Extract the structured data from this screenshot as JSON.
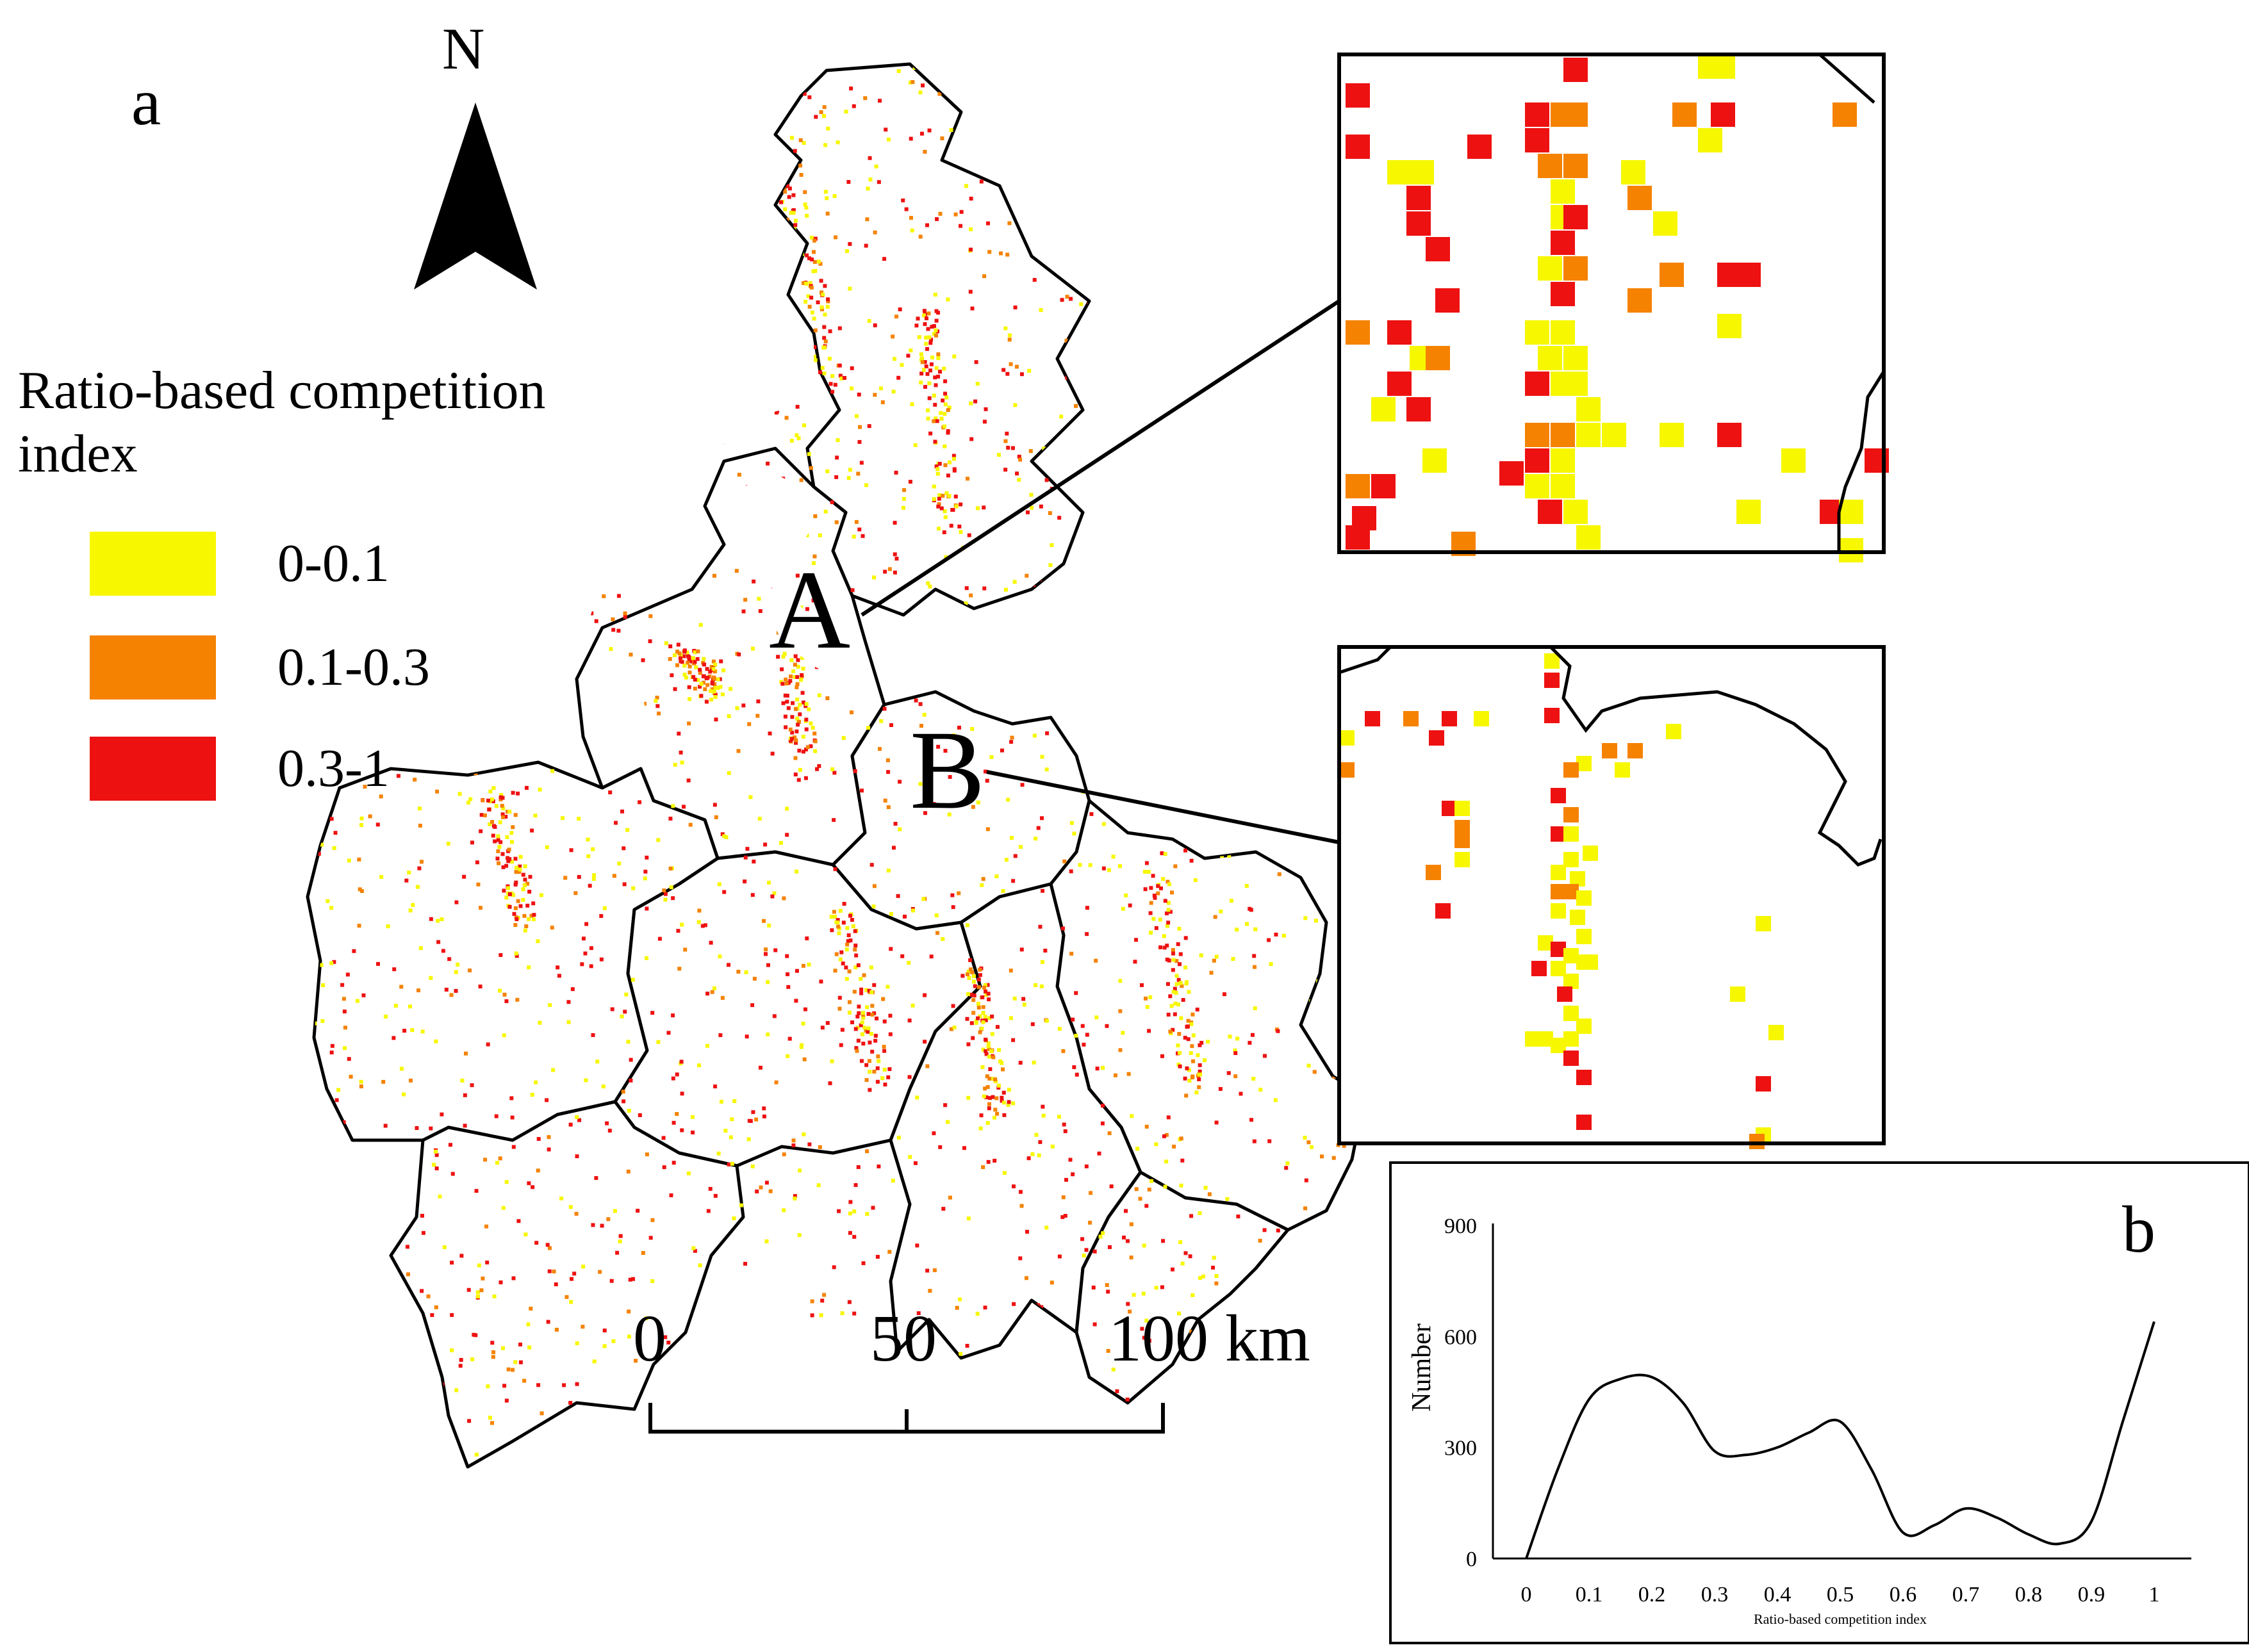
{
  "figure": {
    "panel_a_label": "a",
    "panel_b_label": "b",
    "north_arrow": {
      "letter": "N",
      "icon": "north-arrow-icon"
    }
  },
  "legend": {
    "title": "Ratio-based competition index",
    "items": [
      {
        "label": "0-0.1",
        "color": "#f7f700"
      },
      {
        "label": "0.1-0.3",
        "color": "#f58200"
      },
      {
        "label": "0.3-1",
        "color": "#ee1111"
      }
    ]
  },
  "map": {
    "inset_a_letter": "A",
    "inset_b_letter": "B",
    "boundary_color": "#000000",
    "scale_bar": {
      "labels": [
        "0",
        "50",
        "100 km"
      ]
    }
  },
  "chart_data": {
    "type": "line",
    "title": "",
    "xlabel": "Ratio-based competition index",
    "ylabel": "Number",
    "x_ticks": [
      "0",
      "0.1",
      "0.2",
      "0.3",
      "0.4",
      "0.5",
      "0.6",
      "0.7",
      "0.8",
      "0.9",
      "1"
    ],
    "y_ticks": [
      "0",
      "300",
      "600",
      "900"
    ],
    "xlim": [
      0,
      1
    ],
    "ylim": [
      0,
      900
    ],
    "grid": false,
    "legend": "none",
    "line_color": "#000000",
    "series": [
      {
        "x": [
          0.0,
          0.05,
          0.1,
          0.15,
          0.2,
          0.25,
          0.3,
          0.35,
          0.4,
          0.45,
          0.5,
          0.55,
          0.6,
          0.65,
          0.7,
          0.75,
          0.8,
          0.85,
          0.9,
          0.95,
          1.0
        ],
        "values": [
          0,
          240,
          430,
          485,
          490,
          420,
          290,
          280,
          300,
          340,
          370,
          240,
          70,
          90,
          135,
          110,
          65,
          40,
          100,
          370,
          640
        ]
      }
    ]
  }
}
